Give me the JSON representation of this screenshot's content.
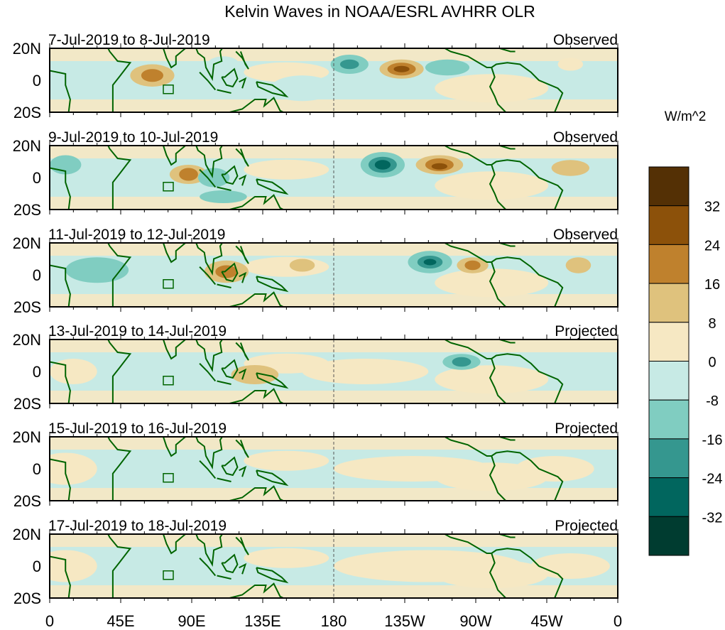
{
  "chart_data": {
    "type": "heatmap",
    "title": "Kelvin Waves in NOAA/ESRL AVHRR OLR",
    "units": "W/m^2",
    "x_ticks": [
      "0",
      "45E",
      "90E",
      "135E",
      "180",
      "135W",
      "90W",
      "45W",
      "0"
    ],
    "y_ticks": [
      "20N",
      "0",
      "20S"
    ],
    "lon_range": [
      0,
      360
    ],
    "lat_range": [
      -20,
      20
    ],
    "colorbar": {
      "labels": [
        "32",
        "24",
        "16",
        "8",
        "0",
        "-8",
        "-16",
        "-24",
        "-32"
      ],
      "levels": [
        32,
        24,
        16,
        8,
        0,
        -8,
        -16,
        -24,
        -32
      ],
      "colors": [
        "#543005",
        "#8c510a",
        "#bf812d",
        "#dfc27d",
        "#f6e8c3",
        "#c7eae5",
        "#80cdc1",
        "#35978f",
        "#01665e",
        "#003c30"
      ]
    },
    "panels": [
      {
        "dates": "7-Jul-2019 to 8-Jul-2019",
        "type": "Observed",
        "features": [
          [
            65,
            3,
            14,
            7,
            12
          ],
          [
            65,
            3,
            7,
            4,
            18
          ],
          [
            190,
            10,
            12,
            6,
            -12
          ],
          [
            190,
            10,
            6,
            3,
            -20
          ],
          [
            223,
            7,
            14,
            6,
            14
          ],
          [
            223,
            7,
            9,
            4,
            22
          ],
          [
            223,
            7,
            5,
            2,
            30
          ],
          [
            252,
            8,
            14,
            5,
            -10
          ],
          [
            330,
            10,
            8,
            4,
            6
          ],
          [
            110,
            10,
            10,
            5,
            -6
          ],
          [
            160,
            -5,
            20,
            8,
            -6
          ]
        ]
      },
      {
        "dates": "9-Jul-2019 to 10-Jul-2019",
        "type": "Observed",
        "features": [
          [
            211,
            8,
            14,
            8,
            -12
          ],
          [
            211,
            8,
            9,
            5,
            -20
          ],
          [
            211,
            8,
            5,
            3,
            -30
          ],
          [
            247,
            8,
            15,
            6,
            12
          ],
          [
            247,
            8,
            9,
            4,
            18
          ],
          [
            247,
            7,
            5,
            2,
            26
          ],
          [
            88,
            2,
            12,
            6,
            12
          ],
          [
            88,
            2,
            6,
            4,
            20
          ],
          [
            104,
            0,
            10,
            6,
            -10
          ],
          [
            330,
            6,
            12,
            5,
            10
          ],
          [
            10,
            8,
            10,
            6,
            -10
          ],
          [
            110,
            -12,
            15,
            4,
            -12
          ]
        ]
      },
      {
        "dates": "11-Jul-2019 to 12-Jul-2019",
        "type": "Observed",
        "features": [
          [
            241,
            8,
            14,
            7,
            -12
          ],
          [
            241,
            8,
            8,
            4,
            -20
          ],
          [
            241,
            8,
            4,
            2,
            -28
          ],
          [
            268,
            6,
            10,
            5,
            12
          ],
          [
            268,
            6,
            5,
            3,
            18
          ],
          [
            112,
            2,
            14,
            7,
            10
          ],
          [
            112,
            2,
            7,
            4,
            18
          ],
          [
            30,
            3,
            20,
            8,
            -10
          ],
          [
            160,
            6,
            8,
            4,
            10
          ],
          [
            335,
            6,
            8,
            5,
            10
          ]
        ]
      },
      {
        "dates": "13-Jul-2019 to 14-Jul-2019",
        "type": "Projected",
        "features": [
          [
            261,
            6,
            12,
            5,
            -12
          ],
          [
            261,
            6,
            6,
            3,
            -18
          ],
          [
            130,
            -2,
            15,
            6,
            10
          ],
          [
            15,
            0,
            15,
            8,
            6
          ],
          [
            200,
            0,
            40,
            8,
            5
          ]
        ]
      },
      {
        "dates": "15-Jul-2019 to 16-Jul-2019",
        "type": "Projected",
        "features": [
          [
            10,
            0,
            20,
            10,
            5
          ],
          [
            230,
            0,
            50,
            8,
            4
          ],
          [
            320,
            0,
            25,
            8,
            4
          ]
        ]
      },
      {
        "dates": "17-Jul-2019 to 18-Jul-2019",
        "type": "Projected",
        "features": [
          [
            10,
            0,
            20,
            10,
            5
          ],
          [
            240,
            0,
            60,
            10,
            4
          ],
          [
            330,
            0,
            25,
            8,
            4
          ]
        ]
      }
    ]
  }
}
